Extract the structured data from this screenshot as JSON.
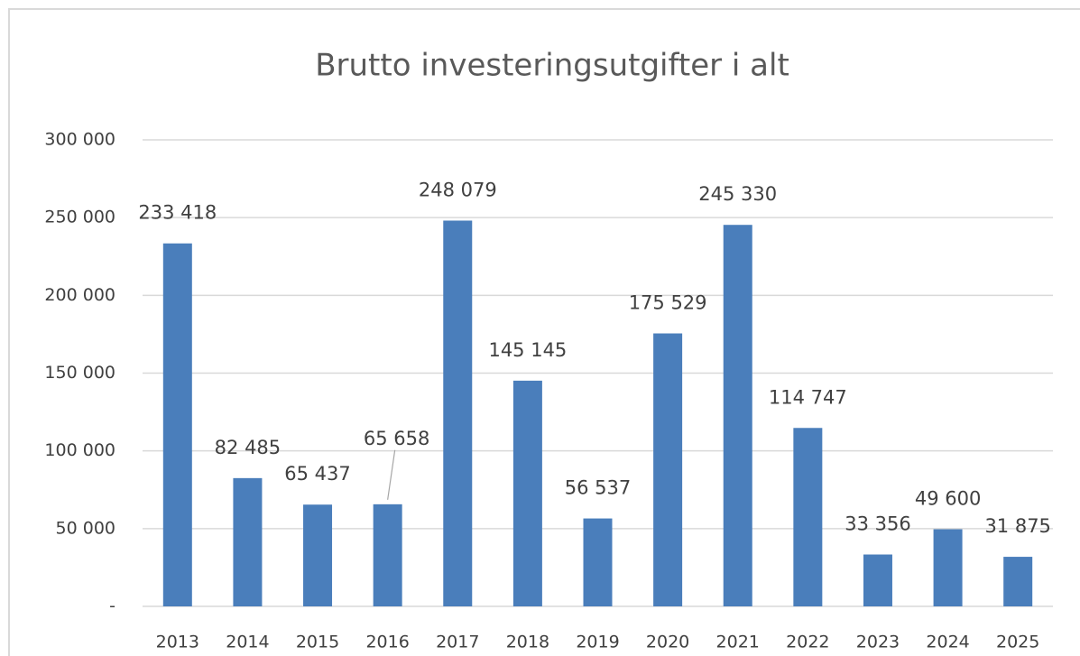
{
  "chart_data": {
    "type": "bar",
    "title": "Brutto investeringsutgifter i alt",
    "categories": [
      "2013",
      "2014",
      "2015",
      "2016",
      "2017",
      "2018",
      "2019",
      "2020",
      "2021",
      "2022",
      "2023",
      "2024",
      "2025"
    ],
    "values": [
      233418,
      82485,
      65437,
      65658,
      248079,
      145145,
      56537,
      175529,
      245330,
      114747,
      33356,
      49600,
      31875
    ],
    "value_labels": [
      "233 418",
      "82 485",
      "65 437",
      "65 658",
      "248 079",
      "145 145",
      "56 537",
      "175 529",
      "245 330",
      "114 747",
      "33 356",
      "49 600",
      "31 875"
    ],
    "color": "#4a7ebb",
    "ylim": [
      0,
      300000
    ],
    "yticks": [
      {
        "value": 0,
        "label": "-"
      },
      {
        "value": 50000,
        "label": "50 000"
      },
      {
        "value": 100000,
        "label": "100 000"
      },
      {
        "value": 150000,
        "label": "150 000"
      },
      {
        "value": 200000,
        "label": "200 000"
      },
      {
        "value": 250000,
        "label": "250 000"
      },
      {
        "value": 300000,
        "label": "300 000"
      }
    ],
    "grid": true
  }
}
